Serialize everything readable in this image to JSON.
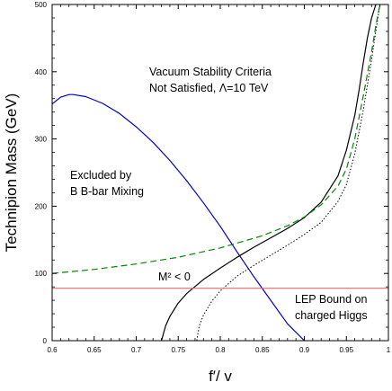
{
  "chart_data": {
    "type": "line",
    "xlabel": "f′/ v",
    "ylabel": "Technipion Mass (GeV)",
    "xlim": [
      0.6,
      1.0
    ],
    "ylim": [
      0,
      500
    ],
    "x_ticks": [
      "0.6",
      "0.65",
      "0.7",
      "0.75",
      "0.8",
      "0.85",
      "0.9",
      "0.95",
      "1"
    ],
    "y_ticks": [
      "0",
      "100",
      "200",
      "300",
      "400",
      "500"
    ],
    "grid": false,
    "legend": "none",
    "annotations": {
      "vacuum_line1": "Vacuum Stability Criteria",
      "vacuum_line2": "Not Satisfied,  Λ=10 TeV",
      "bbar_line1": "Excluded by",
      "bbar_line2": "B B-bar Mixing",
      "msq": "M² < 0",
      "lep_line1": "LEP Bound on",
      "lep_line2": "charged Higgs"
    },
    "series": [
      {
        "style": "solid",
        "color": "#0000cc",
        "x": [
          0.6,
          0.61,
          0.62,
          0.625,
          0.64,
          0.66,
          0.68,
          0.7,
          0.72,
          0.74,
          0.76,
          0.78,
          0.8,
          0.82,
          0.84,
          0.86,
          0.88,
          0.9
        ],
        "y": [
          352,
          362,
          366,
          366,
          363,
          353,
          338,
          318,
          295,
          268,
          238,
          205,
          170,
          132,
          95,
          60,
          25,
          0
        ]
      },
      {
        "style": "solid",
        "color": "#000000",
        "x": [
          0.73,
          0.735,
          0.74,
          0.75,
          0.76,
          0.78,
          0.8,
          0.82,
          0.84,
          0.86,
          0.88,
          0.9,
          0.92,
          0.94,
          0.95,
          0.96,
          0.965,
          0.97,
          0.975,
          0.98,
          0.985
        ],
        "y": [
          0,
          22,
          36,
          56,
          70,
          91,
          108,
          124,
          139,
          153,
          167,
          183,
          206,
          245,
          283,
          335,
          372,
          412,
          450,
          480,
          500
        ]
      },
      {
        "style": "dotted",
        "color": "#000000",
        "x": [
          0.772,
          0.775,
          0.78,
          0.79,
          0.8,
          0.82,
          0.84,
          0.86,
          0.88,
          0.9,
          0.92,
          0.94,
          0.95,
          0.96,
          0.97,
          0.98,
          0.985,
          0.99
        ],
        "y": [
          0,
          22,
          38,
          59,
          74,
          96,
          112,
          127,
          142,
          158,
          176,
          207,
          232,
          278,
          342,
          418,
          460,
          500
        ]
      },
      {
        "style": "dashed",
        "color": "#008800",
        "x": [
          0.6,
          0.65,
          0.7,
          0.75,
          0.8,
          0.85,
          0.88,
          0.9,
          0.92,
          0.94,
          0.95,
          0.96,
          0.97,
          0.98,
          0.985,
          0.99
        ],
        "y": [
          100,
          106,
          114,
          124,
          138,
          156,
          171,
          184,
          202,
          230,
          255,
          300,
          363,
          430,
          468,
          500
        ]
      },
      {
        "style": "solid",
        "color": "#ee6666",
        "x": [
          0.6,
          1.0
        ],
        "y": [
          78,
          78
        ]
      }
    ]
  }
}
